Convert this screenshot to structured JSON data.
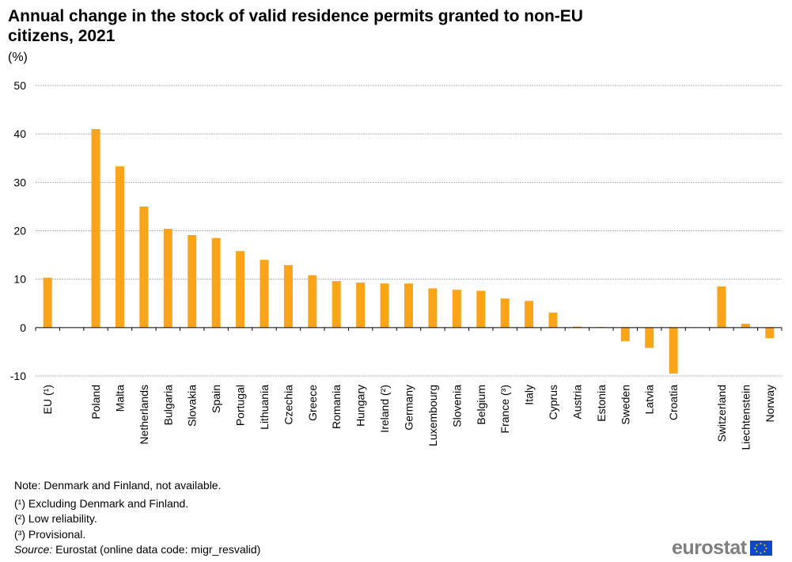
{
  "chart_data": {
    "type": "bar",
    "title": "Annual change in the stock of valid residence permits granted to non-EU citizens, 2021",
    "unit": "(%)",
    "ylim": [
      -10,
      50
    ],
    "yticks": [
      -10,
      0,
      10,
      20,
      30,
      40,
      50
    ],
    "grid": true,
    "bar_color": "#faa519",
    "categories": [
      "EU (¹)",
      "Poland",
      "Malta",
      "Netherlands",
      "Bulgaria",
      "Slovakia",
      "Spain",
      "Portugal",
      "Lithuania",
      "Czechia",
      "Greece",
      "Romania",
      "Hungary",
      "Ireland (²)",
      "Germany",
      "Luxembourg",
      "Slovenia",
      "Belgium",
      "France (³)",
      "Italy",
      "Cyprus",
      "Austria",
      "Estonia",
      "Sweden",
      "Latvia",
      "Croatia",
      "Switzerland",
      "Liechtenstein",
      "Norway"
    ],
    "values": [
      10.3,
      41.0,
      33.3,
      25.0,
      20.4,
      19.1,
      18.5,
      15.8,
      14.0,
      12.9,
      10.8,
      9.6,
      9.3,
      9.1,
      9.1,
      8.1,
      7.8,
      7.6,
      6.0,
      5.5,
      3.1,
      0.2,
      0.1,
      -2.8,
      -4.2,
      -9.5,
      8.5,
      0.8,
      -2.2
    ]
  },
  "notes": {
    "note1": "Note: Denmark and Finland, not available.",
    "note2": "(¹) Excluding Denmark and Finland.",
    "note3": "(²) Low reliability.",
    "note4": "(³) Provisional.",
    "source_label": "Source:",
    "source_text": " Eurostat (online data code: migr_resvalid)"
  },
  "logo": {
    "text": "eurostat",
    "icon": "eu-flag-icon"
  }
}
